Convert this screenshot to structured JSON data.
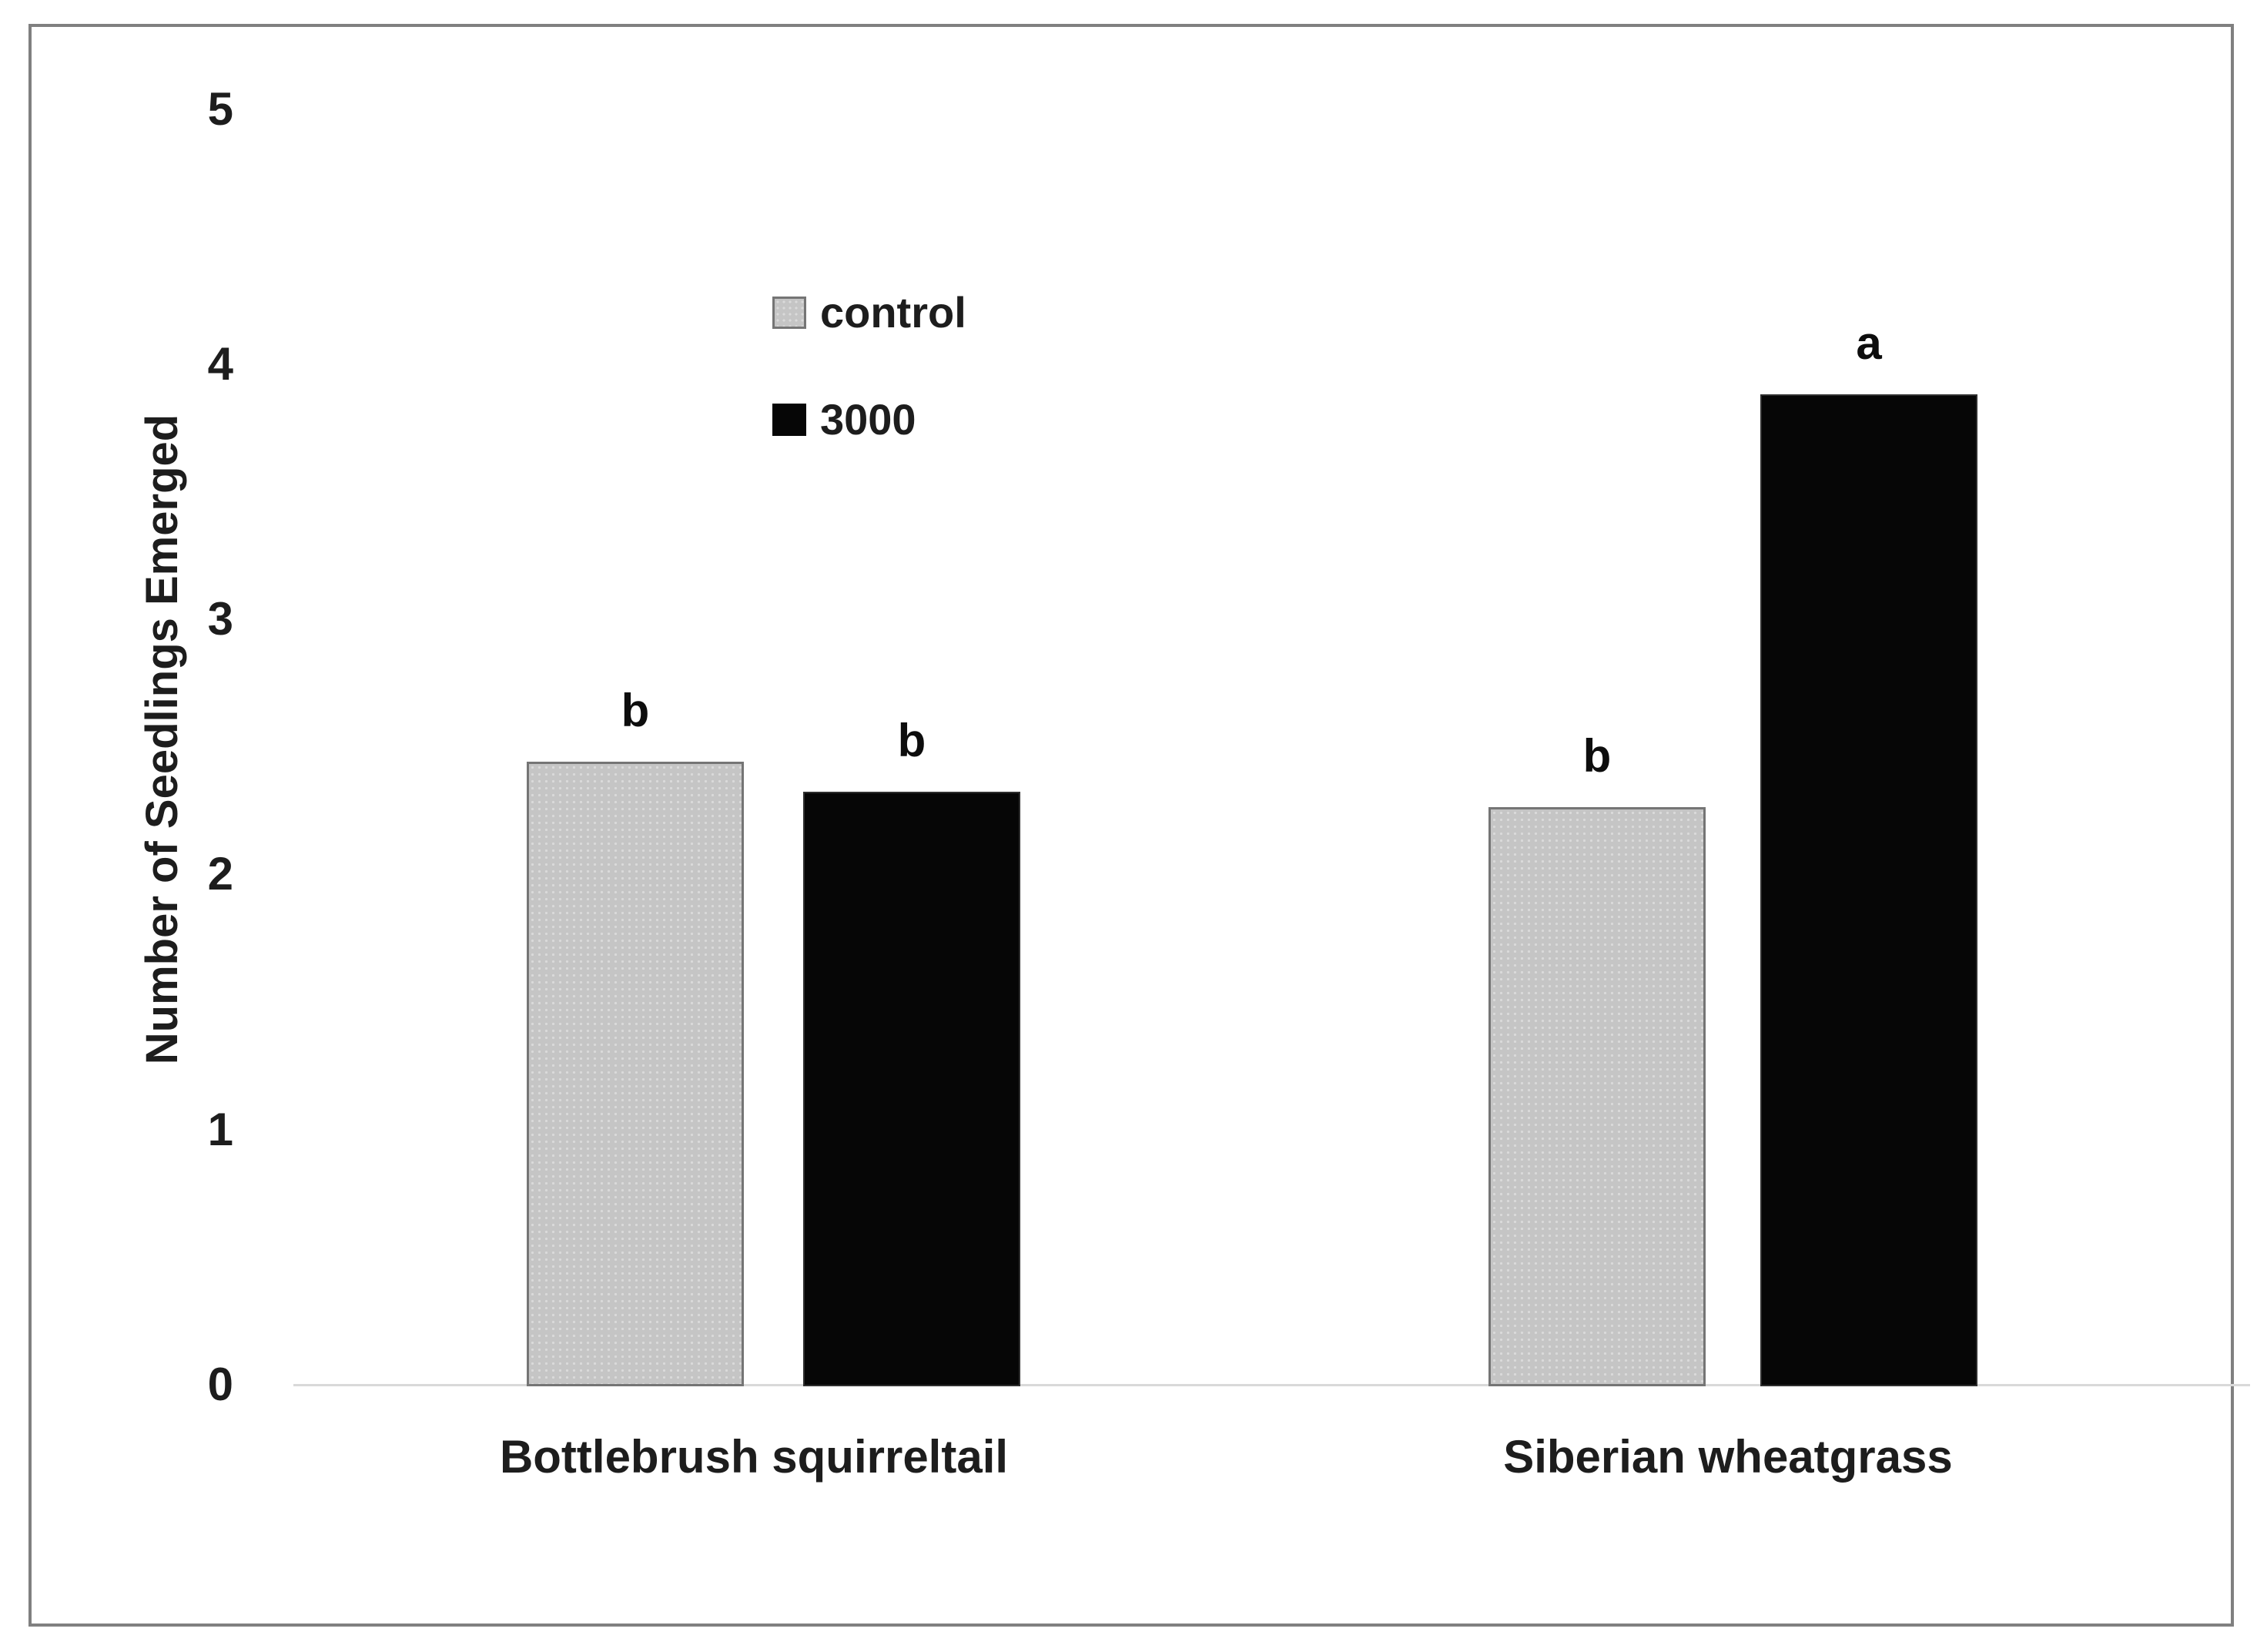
{
  "chart_data": {
    "type": "bar",
    "title": "",
    "xlabel": "",
    "ylabel": "Number of Seedlings Emerged",
    "categories": [
      "Bottlebrush squirreltail",
      "Siberian wheatgrass"
    ],
    "series": [
      {
        "name": "control",
        "swatch": "gray-dotted-pattern",
        "color": "#c5c5c5",
        "values": [
          2.45,
          2.27
        ]
      },
      {
        "name": "3000",
        "swatch": "solid-black",
        "color": "#060606",
        "values": [
          2.33,
          3.89
        ]
      }
    ],
    "bar_letters": [
      "b",
      "b",
      "b",
      "a"
    ],
    "ylim": [
      0,
      5
    ],
    "ytick_labels": [
      "5",
      "4",
      "3",
      "2",
      "1",
      "0"
    ],
    "grid": false,
    "legend_position": "inside-upper-left",
    "axis_line_color": "#d9d9d9",
    "frame_color": "#808080"
  }
}
